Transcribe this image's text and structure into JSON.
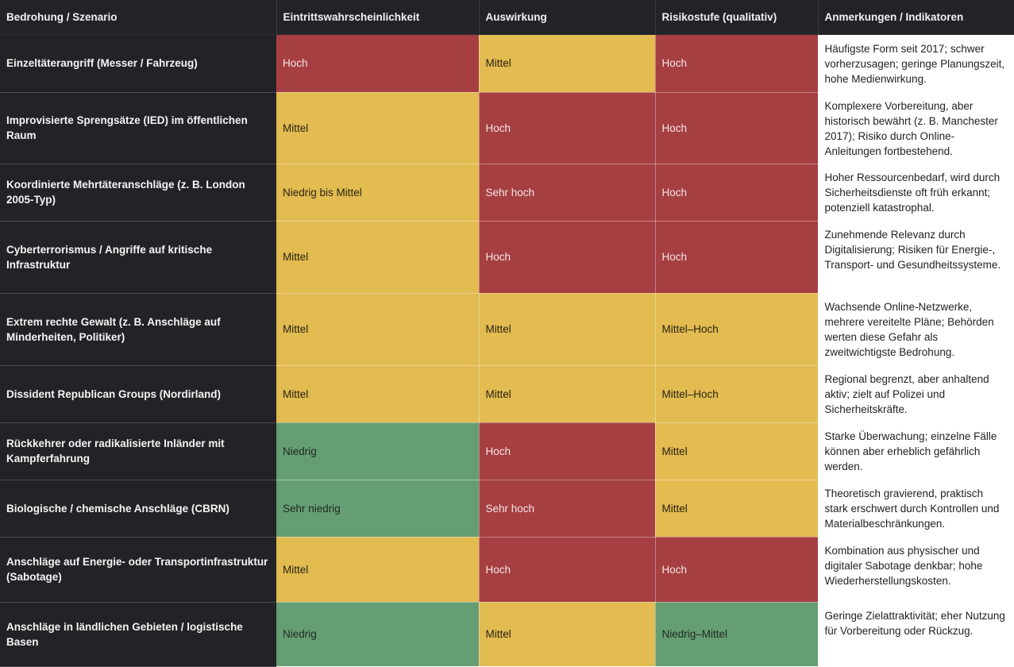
{
  "headers": {
    "scenario": "Bedrohung / Szenario",
    "likelihood": "Eintrittswahrscheinlichkeit",
    "impact": "Auswirkung",
    "risk": "Risikostufe (qualitativ)",
    "notes": "Anmerkungen / Indikatoren"
  },
  "colors": {
    "header_bg": "#222326",
    "high": "#a63f42",
    "medium": "#e2bb51",
    "low": "#669e74"
  },
  "rows": [
    {
      "scenario": "Einzeltäterangriff (Messer / Fahrzeug)",
      "likelihood": "Hoch",
      "likelihood_level": "red",
      "impact": "Mittel",
      "impact_level": "yellow",
      "risk": "Hoch",
      "risk_level": "red",
      "notes": "Häufigste Form seit 2017; schwer vorherzusagen; geringe Planungszeit, hohe Medienwirkung."
    },
    {
      "scenario": "Improvisierte Sprengsätze (IED) im öffentlichen Raum",
      "likelihood": "Mittel",
      "likelihood_level": "yellow",
      "impact": "Hoch",
      "impact_level": "red",
      "risk": "Hoch",
      "risk_level": "red",
      "notes": "Komplexere Vorbereitung, aber historisch bewährt (z. B. Manchester 2017); Risiko durch Online-Anleitungen fortbestehend."
    },
    {
      "scenario": "Koordinierte Mehrtäteranschläge (z. B. London 2005-Typ)",
      "likelihood": "Niedrig bis Mittel",
      "likelihood_level": "yellow",
      "impact": "Sehr hoch",
      "impact_level": "red",
      "risk": "Hoch",
      "risk_level": "red",
      "notes": "Hoher Ressourcenbedarf, wird durch Sicherheitsdienste oft früh erkannt; potenziell katastrophal."
    },
    {
      "scenario": "Cyberterrorismus / Angriffe auf kritische Infrastruktur",
      "likelihood": "Mittel",
      "likelihood_level": "yellow",
      "impact": "Hoch",
      "impact_level": "red",
      "risk": "Hoch",
      "risk_level": "red",
      "notes": "Zunehmende Relevanz durch Digitalisierung; Risiken für Energie-, Transport- und Gesundheitssysteme."
    },
    {
      "scenario": "Extrem rechte Gewalt (z. B. Anschläge auf Minderheiten, Politiker)",
      "likelihood": "Mittel",
      "likelihood_level": "yellow",
      "impact": "Mittel",
      "impact_level": "yellow",
      "risk": "Mittel–Hoch",
      "risk_level": "yellow",
      "notes": "Wachsende Online-Netzwerke, mehrere vereitelte Pläne; Behörden werten diese Gefahr als zweitwichtigste Bedrohung."
    },
    {
      "scenario": "Dissident Republican Groups (Nordirland)",
      "likelihood": "Mittel",
      "likelihood_level": "yellow",
      "impact": "Mittel",
      "impact_level": "yellow",
      "risk": "Mittel–Hoch",
      "risk_level": "yellow",
      "notes": "Regional begrenzt, aber anhaltend aktiv; zielt auf Polizei und Sicherheitskräfte."
    },
    {
      "scenario": "Rückkehrer oder radikalisierte Inländer mit Kampferfahrung",
      "likelihood": "Niedrig",
      "likelihood_level": "green",
      "impact": "Hoch",
      "impact_level": "red",
      "risk": "Mittel",
      "risk_level": "yellow",
      "notes": "Starke Überwachung; einzelne Fälle können aber erheblich gefährlich werden."
    },
    {
      "scenario": "Biologische / chemische Anschläge (CBRN)",
      "likelihood": "Sehr niedrig",
      "likelihood_level": "green",
      "impact": "Sehr hoch",
      "impact_level": "red",
      "risk": "Mittel",
      "risk_level": "yellow",
      "notes": "Theoretisch gravierend, praktisch stark erschwert durch Kontrollen und Materialbeschränkungen."
    },
    {
      "scenario": "Anschläge auf Energie- oder Transportinfrastruktur (Sabotage)",
      "likelihood": "Mittel",
      "likelihood_level": "yellow",
      "impact": "Hoch",
      "impact_level": "red",
      "risk": "Hoch",
      "risk_level": "red",
      "notes": "Kombination aus physischer und digitaler Sabotage denkbar; hohe Wiederherstellungskosten."
    },
    {
      "scenario": "Anschläge in ländlichen Gebieten / logistische Basen",
      "likelihood": "Niedrig",
      "likelihood_level": "green",
      "impact": "Mittel",
      "impact_level": "yellow",
      "risk": "Niedrig–Mittel",
      "risk_level": "green",
      "notes": "Geringe Zielattraktivität; eher Nutzung für Vorbereitung oder Rückzug."
    }
  ]
}
